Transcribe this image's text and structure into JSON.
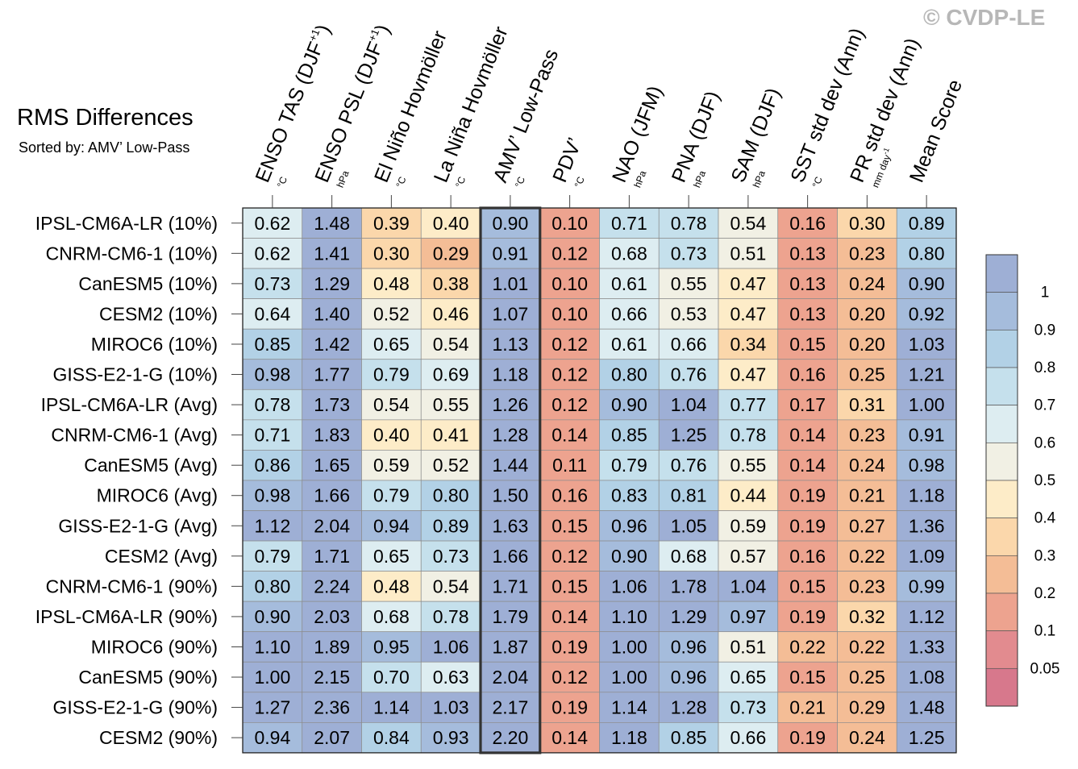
{
  "title": "RMS Differences",
  "subtitle": "Sorted by: AMV’ Low-Pass",
  "copyright": "© CVDP-LE",
  "chart_data": {
    "type": "heatmap",
    "title": "RMS Differences",
    "subtitle": "Sorted by: AMV’ Low-Pass",
    "columns": [
      {
        "name": "ENSO TAS (DJF",
        "sup": "+1",
        "close": ")",
        "unit": "°C"
      },
      {
        "name": "ENSO PSL (DJF",
        "sup": "+1",
        "close": ")",
        "unit": "hPa"
      },
      {
        "name": "El Niño Hovmöller",
        "sup": "",
        "close": "",
        "unit": "°C"
      },
      {
        "name": "La Niña Hovmöller",
        "sup": "",
        "close": "",
        "unit": "°C"
      },
      {
        "name": "AMV’ Low-Pass",
        "sup": "",
        "close": "",
        "unit": "°C"
      },
      {
        "name": "PDV’",
        "sup": "",
        "close": "",
        "unit": "°C"
      },
      {
        "name": "NAO (JFM)",
        "sup": "",
        "close": "",
        "unit": "hPa"
      },
      {
        "name": "PNA (DJF)",
        "sup": "",
        "close": "",
        "unit": "hPa"
      },
      {
        "name": "SAM (DJF)",
        "sup": "",
        "close": "",
        "unit": "hPa"
      },
      {
        "name": "SST std dev (Ann)",
        "sup": "",
        "close": "",
        "unit": "°C"
      },
      {
        "name": "PR std dev (Ann)",
        "sup": "",
        "close": "",
        "unit": "mm day",
        "unit_sup": "-1"
      },
      {
        "name": "Mean Score",
        "sup": "",
        "close": "",
        "unit": ""
      }
    ],
    "highlighted_column": 4,
    "rows": [
      "IPSL-CM6A-LR (10%)",
      "CNRM-CM6-1 (10%)",
      "CanESM5 (10%)",
      "CESM2 (10%)",
      "MIROC6 (10%)",
      "GISS-E2-1-G (10%)",
      "IPSL-CM6A-LR (Avg)",
      "CNRM-CM6-1 (Avg)",
      "CanESM5 (Avg)",
      "MIROC6 (Avg)",
      "GISS-E2-1-G (Avg)",
      "CESM2 (Avg)",
      "CNRM-CM6-1 (90%)",
      "IPSL-CM6A-LR (90%)",
      "MIROC6 (90%)",
      "CanESM5 (90%)",
      "GISS-E2-1-G (90%)",
      "CESM2 (90%)"
    ],
    "values": [
      [
        "0.62",
        "1.48",
        "0.39",
        "0.40",
        "0.90",
        "0.10",
        "0.71",
        "0.78",
        "0.54",
        "0.16",
        "0.30",
        "0.89"
      ],
      [
        "0.62",
        "1.41",
        "0.30",
        "0.29",
        "0.91",
        "0.12",
        "0.68",
        "0.73",
        "0.51",
        "0.13",
        "0.23",
        "0.80"
      ],
      [
        "0.73",
        "1.29",
        "0.48",
        "0.38",
        "1.01",
        "0.10",
        "0.61",
        "0.55",
        "0.47",
        "0.13",
        "0.24",
        "0.90"
      ],
      [
        "0.64",
        "1.40",
        "0.52",
        "0.46",
        "1.07",
        "0.10",
        "0.66",
        "0.53",
        "0.47",
        "0.13",
        "0.20",
        "0.92"
      ],
      [
        "0.85",
        "1.42",
        "0.65",
        "0.54",
        "1.13",
        "0.12",
        "0.61",
        "0.66",
        "0.34",
        "0.15",
        "0.20",
        "1.03"
      ],
      [
        "0.98",
        "1.77",
        "0.79",
        "0.69",
        "1.18",
        "0.12",
        "0.80",
        "0.76",
        "0.47",
        "0.16",
        "0.25",
        "1.21"
      ],
      [
        "0.78",
        "1.73",
        "0.54",
        "0.55",
        "1.26",
        "0.12",
        "0.90",
        "1.04",
        "0.77",
        "0.17",
        "0.31",
        "1.00"
      ],
      [
        "0.71",
        "1.83",
        "0.40",
        "0.41",
        "1.28",
        "0.14",
        "0.85",
        "1.25",
        "0.78",
        "0.14",
        "0.23",
        "0.91"
      ],
      [
        "0.86",
        "1.65",
        "0.59",
        "0.52",
        "1.44",
        "0.11",
        "0.79",
        "0.76",
        "0.55",
        "0.14",
        "0.24",
        "0.98"
      ],
      [
        "0.98",
        "1.66",
        "0.79",
        "0.80",
        "1.50",
        "0.16",
        "0.83",
        "0.81",
        "0.44",
        "0.19",
        "0.21",
        "1.18"
      ],
      [
        "1.12",
        "2.04",
        "0.94",
        "0.89",
        "1.63",
        "0.15",
        "0.96",
        "1.05",
        "0.59",
        "0.19",
        "0.27",
        "1.36"
      ],
      [
        "0.79",
        "1.71",
        "0.65",
        "0.73",
        "1.66",
        "0.12",
        "0.90",
        "0.68",
        "0.57",
        "0.16",
        "0.22",
        "1.09"
      ],
      [
        "0.80",
        "2.24",
        "0.48",
        "0.54",
        "1.71",
        "0.15",
        "1.06",
        "1.78",
        "1.04",
        "0.15",
        "0.23",
        "0.99"
      ],
      [
        "0.90",
        "2.03",
        "0.68",
        "0.78",
        "1.79",
        "0.14",
        "1.10",
        "1.29",
        "0.97",
        "0.19",
        "0.32",
        "1.12"
      ],
      [
        "1.10",
        "1.89",
        "0.95",
        "1.06",
        "1.87",
        "0.19",
        "1.00",
        "0.96",
        "0.51",
        "0.22",
        "0.22",
        "1.33"
      ],
      [
        "1.00",
        "2.15",
        "0.70",
        "0.63",
        "2.04",
        "0.12",
        "1.00",
        "0.96",
        "0.65",
        "0.15",
        "0.25",
        "1.08"
      ],
      [
        "1.27",
        "2.36",
        "1.14",
        "1.03",
        "2.17",
        "0.19",
        "1.14",
        "1.28",
        "0.73",
        "0.21",
        "0.29",
        "1.48"
      ],
      [
        "0.94",
        "2.07",
        "0.84",
        "0.93",
        "2.20",
        "0.14",
        "1.18",
        "0.85",
        "0.66",
        "0.19",
        "0.24",
        "1.25"
      ]
    ],
    "colorbar": {
      "ticks": [
        "1",
        "0.9",
        "0.8",
        "0.7",
        "0.6",
        "0.5",
        "0.4",
        "0.3",
        "0.2",
        "0.1",
        "0.05"
      ],
      "bounds": [
        0.05,
        0.1,
        0.2,
        0.3,
        0.4,
        0.5,
        0.6,
        0.7,
        0.8,
        0.9,
        1.0
      ],
      "colors_low_to_high": [
        "#d7788c",
        "#e28b8f",
        "#eda38f",
        "#f4bd96",
        "#fbd7ab",
        "#fdecc8",
        "#f1f0e4",
        "#ddedf1",
        "#c5e0ec",
        "#b2d1e6",
        "#a5bcdc",
        "#9eafd5"
      ]
    }
  }
}
